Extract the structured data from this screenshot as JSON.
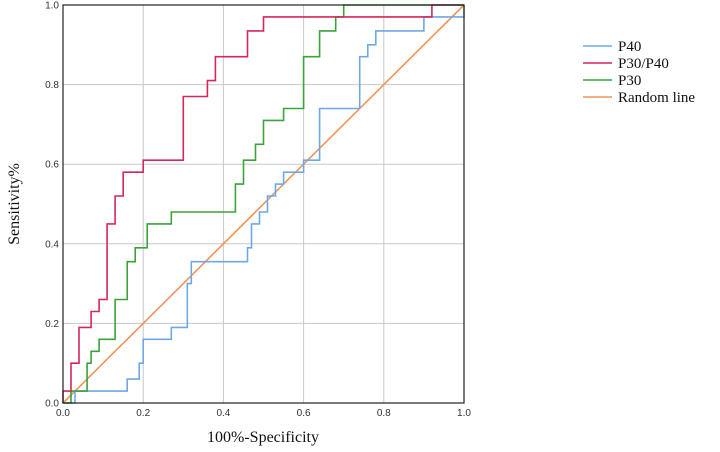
{
  "chart_data": {
    "type": "line",
    "title": "",
    "xlabel": "100%-Specificity",
    "ylabel": "Sensitivity%",
    "xlim": [
      0,
      1
    ],
    "ylim": [
      0,
      1
    ],
    "x_ticks": [
      "0.0",
      "0.2",
      "0.4",
      "0.6",
      "0.8",
      "1.0"
    ],
    "y_ticks": [
      "0.0",
      "0.2",
      "0.4",
      "0.6",
      "0.8",
      "1.0"
    ],
    "grid": true,
    "legend_position": "right",
    "series": [
      {
        "name": "P40",
        "color": "#6fa8e6",
        "x": [
          0,
          0.03,
          0.03,
          0.04,
          0.04,
          0.16,
          0.16,
          0.19,
          0.19,
          0.2,
          0.2,
          0.27,
          0.27,
          0.31,
          0.31,
          0.32,
          0.32,
          0.36,
          0.36,
          0.46,
          0.46,
          0.47,
          0.47,
          0.49,
          0.49,
          0.51,
          0.51,
          0.53,
          0.53,
          0.55,
          0.55,
          0.58,
          0.58,
          0.6,
          0.6,
          0.64,
          0.64,
          0.68,
          0.68,
          0.74,
          0.74,
          0.76,
          0.76,
          0.78,
          0.78,
          0.8,
          0.8,
          0.9,
          0.9,
          0.95,
          0.95,
          1.0,
          1.0
        ],
        "y": [
          0,
          0,
          0.03,
          0.03,
          0.03,
          0.03,
          0.06,
          0.06,
          0.1,
          0.1,
          0.16,
          0.16,
          0.19,
          0.19,
          0.3,
          0.3,
          0.355,
          0.355,
          0.355,
          0.355,
          0.39,
          0.39,
          0.45,
          0.45,
          0.48,
          0.48,
          0.52,
          0.52,
          0.55,
          0.55,
          0.58,
          0.58,
          0.58,
          0.58,
          0.61,
          0.61,
          0.74,
          0.74,
          0.74,
          0.74,
          0.87,
          0.87,
          0.9,
          0.9,
          0.935,
          0.935,
          0.935,
          0.935,
          0.97,
          0.97,
          0.97,
          0.97,
          1.0
        ]
      },
      {
        "name": "P30/P40",
        "color": "#d4285a",
        "x": [
          0,
          0,
          0.02,
          0.02,
          0.04,
          0.04,
          0.07,
          0.07,
          0.09,
          0.09,
          0.11,
          0.11,
          0.13,
          0.13,
          0.15,
          0.15,
          0.17,
          0.17,
          0.2,
          0.2,
          0.3,
          0.3,
          0.36,
          0.36,
          0.38,
          0.38,
          0.4,
          0.4,
          0.46,
          0.46,
          0.5,
          0.5,
          0.92,
          0.92,
          1.0
        ],
        "y": [
          0,
          0.03,
          0.03,
          0.1,
          0.1,
          0.19,
          0.19,
          0.23,
          0.23,
          0.26,
          0.26,
          0.45,
          0.45,
          0.52,
          0.52,
          0.58,
          0.58,
          0.58,
          0.58,
          0.61,
          0.61,
          0.77,
          0.77,
          0.81,
          0.81,
          0.87,
          0.87,
          0.87,
          0.87,
          0.935,
          0.935,
          0.97,
          0.97,
          1.0,
          1.0
        ]
      },
      {
        "name": "P30",
        "color": "#3aa33a",
        "x": [
          0,
          0.02,
          0.02,
          0.06,
          0.06,
          0.07,
          0.07,
          0.09,
          0.09,
          0.13,
          0.13,
          0.16,
          0.16,
          0.18,
          0.18,
          0.21,
          0.21,
          0.27,
          0.27,
          0.43,
          0.43,
          0.45,
          0.45,
          0.48,
          0.48,
          0.5,
          0.5,
          0.55,
          0.55,
          0.6,
          0.6,
          0.64,
          0.64,
          0.68,
          0.68,
          0.7,
          0.7,
          1.0
        ],
        "y": [
          0,
          0,
          0.03,
          0.03,
          0.1,
          0.1,
          0.13,
          0.13,
          0.16,
          0.16,
          0.26,
          0.26,
          0.355,
          0.355,
          0.39,
          0.39,
          0.45,
          0.45,
          0.48,
          0.48,
          0.55,
          0.55,
          0.61,
          0.61,
          0.65,
          0.65,
          0.71,
          0.71,
          0.74,
          0.74,
          0.87,
          0.87,
          0.935,
          0.935,
          0.97,
          0.97,
          1.0,
          1.0
        ]
      },
      {
        "name": "Random line",
        "color": "#f0955a",
        "x": [
          0,
          1.0
        ],
        "y": [
          0,
          1.0
        ]
      }
    ]
  }
}
